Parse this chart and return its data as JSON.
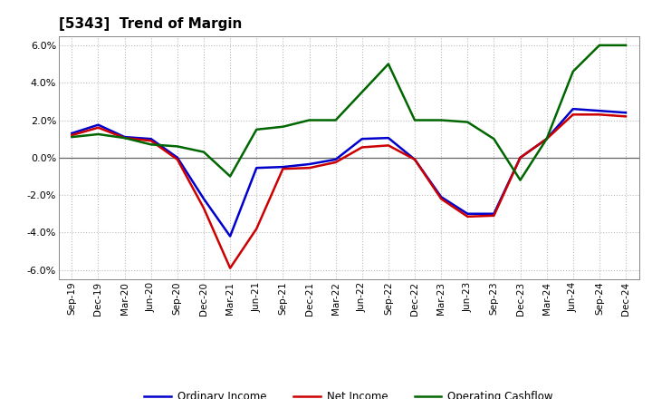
{
  "title": "[5343]  Trend of Margin",
  "x_labels": [
    "Sep-19",
    "Dec-19",
    "Mar-20",
    "Jun-20",
    "Sep-20",
    "Dec-20",
    "Mar-21",
    "Jun-21",
    "Sep-21",
    "Dec-21",
    "Mar-22",
    "Jun-22",
    "Sep-22",
    "Dec-22",
    "Mar-23",
    "Jun-23",
    "Sep-23",
    "Dec-23",
    "Mar-24",
    "Jun-24",
    "Sep-24",
    "Dec-24"
  ],
  "ordinary_income": [
    1.3,
    1.75,
    1.1,
    1.0,
    0.0,
    -2.2,
    -4.2,
    -0.55,
    -0.5,
    -0.35,
    -0.1,
    1.0,
    1.05,
    -0.1,
    -2.1,
    -3.0,
    -3.0,
    0.0,
    1.0,
    2.6,
    2.5,
    2.4
  ],
  "net_income": [
    1.2,
    1.6,
    1.05,
    0.9,
    -0.1,
    -2.7,
    -5.9,
    -3.8,
    -0.6,
    -0.55,
    -0.25,
    0.55,
    0.65,
    -0.1,
    -2.2,
    -3.15,
    -3.1,
    0.0,
    1.0,
    2.3,
    2.3,
    2.2
  ],
  "operating_cashflow": [
    1.1,
    1.25,
    1.05,
    0.7,
    0.6,
    0.3,
    -1.0,
    1.5,
    1.65,
    2.0,
    2.0,
    3.5,
    5.0,
    2.0,
    2.0,
    1.9,
    1.0,
    -1.2,
    1.0,
    4.6,
    6.0,
    6.0
  ],
  "ylim": [
    -6.5,
    6.5
  ],
  "yticks": [
    -6.0,
    -4.0,
    -2.0,
    0.0,
    2.0,
    4.0,
    6.0
  ],
  "colors": {
    "ordinary_income": "#0000cc",
    "net_income": "#cc0000",
    "operating_cashflow": "#006600"
  },
  "line_width": 1.8,
  "background_color": "#ffffff",
  "plot_bg_color": "#ffffff",
  "grid_color": "#bbbbbb",
  "legend": [
    "Ordinary Income",
    "Net Income",
    "Operating Cashflow"
  ]
}
